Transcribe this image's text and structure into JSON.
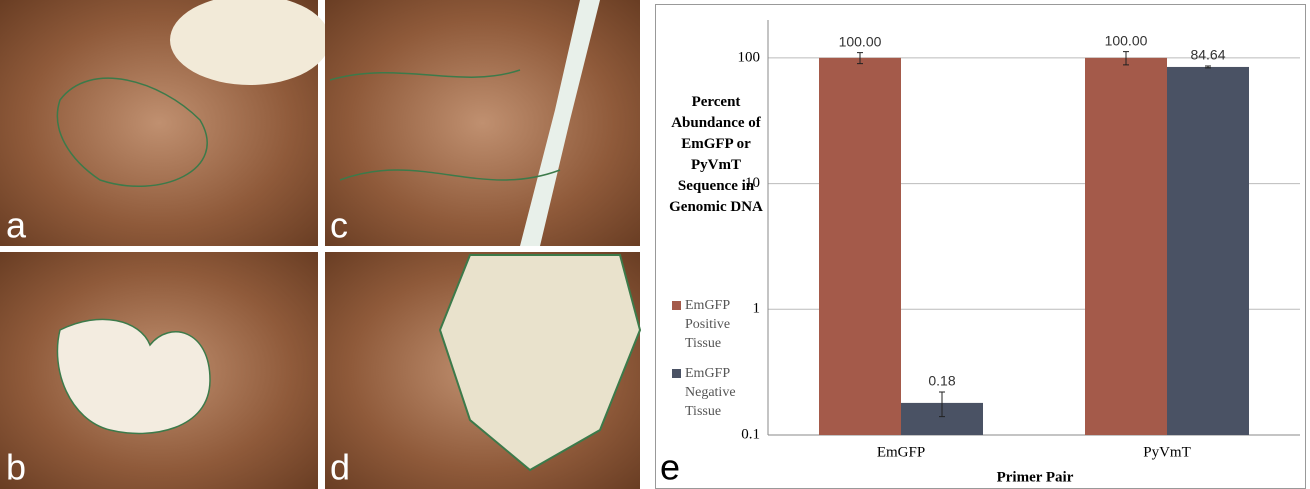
{
  "panels": {
    "labels": [
      "a",
      "b",
      "c",
      "d",
      "e"
    ]
  },
  "chart_data": {
    "type": "bar",
    "y_title": "Percent Abundance of EmGFP or PyVmT Sequence in Genomic DNA",
    "x_title": "Primer Pair",
    "categories": [
      "EmGFP",
      "PyVmT"
    ],
    "series": [
      {
        "name": "EmGFP Positive Tissue",
        "color": "#a45a4a",
        "values": [
          100,
          100
        ],
        "value_labels": [
          "100.00",
          "100.00"
        ],
        "errors": [
          10,
          12
        ]
      },
      {
        "name": "EmGFP Negative Tissue",
        "color": "#4a5264",
        "values": [
          0.18,
          84.64
        ],
        "value_labels": [
          "0.18",
          "84.64"
        ],
        "errors": [
          0.04,
          1.5
        ]
      }
    ],
    "ylim": [
      0.1,
      200
    ],
    "yticks": [
      0.1,
      1,
      10,
      100
    ],
    "log_scale": true,
    "grid": true,
    "legend": "left"
  }
}
